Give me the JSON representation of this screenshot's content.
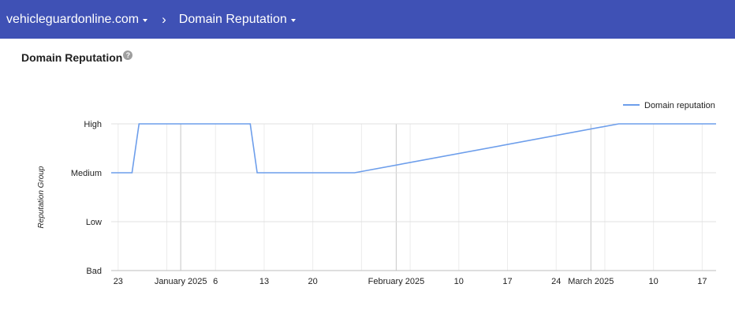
{
  "header": {
    "site": "vehicleguardonline.com",
    "separator": "›",
    "section": "Domain Reputation"
  },
  "page": {
    "title": "Domain Reputation",
    "help_glyph": "?"
  },
  "colors": {
    "header_bg": "#3f51b5",
    "series": "#6d9eeb"
  },
  "chart_data": {
    "type": "line",
    "title": "",
    "ylabel": "Reputation Group",
    "xlabel": "",
    "y_categories": [
      "Bad",
      "Low",
      "Medium",
      "High"
    ],
    "x_ticks": [
      {
        "date": "2024-12-23",
        "label": "23"
      },
      {
        "date": "2025-01-01",
        "label": "January 2025"
      },
      {
        "date": "2025-01-06",
        "label": "6"
      },
      {
        "date": "2025-01-13",
        "label": "13"
      },
      {
        "date": "2025-01-20",
        "label": "20"
      },
      {
        "date": "2025-02-01",
        "label": "February 2025"
      },
      {
        "date": "2025-02-10",
        "label": "10"
      },
      {
        "date": "2025-02-17",
        "label": "17"
      },
      {
        "date": "2025-02-24",
        "label": "24"
      },
      {
        "date": "2025-03-01",
        "label": "March 2025"
      },
      {
        "date": "2025-03-10",
        "label": "10"
      },
      {
        "date": "2025-03-17",
        "label": "17"
      }
    ],
    "xlim": [
      "2024-12-22",
      "2025-03-19"
    ],
    "legend": {
      "position": "top-right"
    },
    "grid": true,
    "series": [
      {
        "name": "Domain reputation",
        "points": [
          {
            "date": "2024-12-22",
            "value": "Medium"
          },
          {
            "date": "2024-12-25",
            "value": "Medium"
          },
          {
            "date": "2024-12-26",
            "value": "High"
          },
          {
            "date": "2025-01-11",
            "value": "High"
          },
          {
            "date": "2025-01-12",
            "value": "Medium"
          },
          {
            "date": "2025-01-26",
            "value": "Medium"
          },
          {
            "date": "2025-03-05",
            "value": "High"
          },
          {
            "date": "2025-03-19",
            "value": "High"
          }
        ]
      }
    ]
  }
}
